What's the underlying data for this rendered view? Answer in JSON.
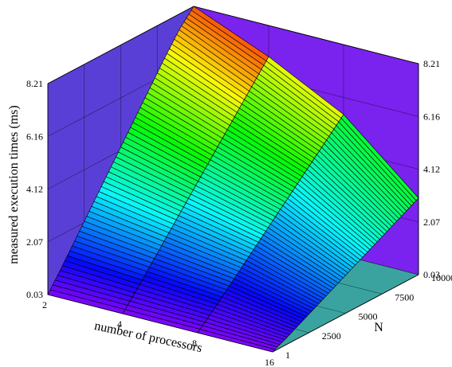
{
  "chart_data": {
    "type": "surface3d",
    "title": "",
    "xlabel": "number of processors",
    "ylabel": "N",
    "zlabel": "measured execution times (ms)",
    "x_ticks": [
      "2",
      "4",
      "8",
      "16"
    ],
    "y_ticks": [
      "1",
      "2500",
      "5000",
      "7500",
      "10000"
    ],
    "z_ticks": [
      "0.03",
      "2.07",
      "4.12",
      "6.16",
      "8.21"
    ],
    "z_ticks_right": [
      "0.03",
      "2.07",
      "4.12",
      "6.16",
      "8.21"
    ],
    "zlim": [
      0.03,
      8.21
    ],
    "ylim": [
      1,
      10000
    ],
    "colormap": "hsv",
    "colors": {
      "back_wall": "#5a3fd6",
      "side_wall": "#7a22ee",
      "floor": "#3aa3a0"
    },
    "processors": [
      2,
      4,
      8,
      16
    ],
    "N": [
      1,
      1000,
      2000,
      3000,
      4000,
      5000,
      6000,
      7000,
      8000,
      9000,
      10000
    ],
    "series": [
      {
        "name": "2",
        "values": [
          0.03,
          0.85,
          1.7,
          2.55,
          3.4,
          4.25,
          5.1,
          5.95,
          6.8,
          7.6,
          8.21
        ]
      },
      {
        "name": "4",
        "values": [
          0.03,
          0.7,
          1.4,
          2.1,
          2.8,
          3.5,
          4.2,
          4.9,
          5.6,
          6.3,
          7.0
        ]
      },
      {
        "name": "8",
        "values": [
          0.03,
          0.55,
          1.1,
          1.65,
          2.2,
          2.75,
          3.3,
          3.85,
          4.4,
          4.95,
          5.5
        ]
      },
      {
        "name": "16",
        "values": [
          0.03,
          0.3,
          0.6,
          0.9,
          1.2,
          1.5,
          1.8,
          2.1,
          2.4,
          2.7,
          3.0
        ]
      }
    ]
  }
}
